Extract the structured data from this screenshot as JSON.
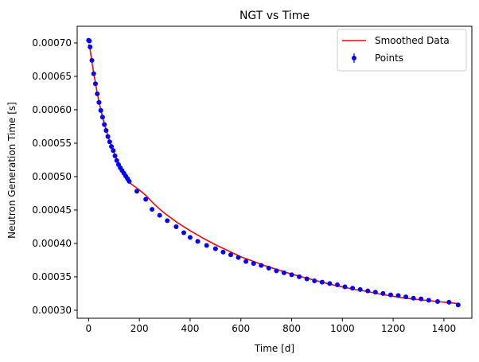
{
  "chart_data": {
    "type": "scatter",
    "title": "NGT vs Time",
    "xlabel": "Time [d]",
    "ylabel": "Neutron Generation Time [s]",
    "xlim": [
      -45,
      1510
    ],
    "ylim": [
      0.000288,
      0.000725
    ],
    "xticks": [
      0,
      200,
      400,
      600,
      800,
      1000,
      1200,
      1400
    ],
    "xtick_labels": [
      "0",
      "200",
      "400",
      "600",
      "800",
      "1000",
      "1200",
      "1400"
    ],
    "yticks": [
      0.0003,
      0.00035,
      0.0004,
      0.00045,
      0.0005,
      0.00055,
      0.0006,
      0.00065,
      0.0007
    ],
    "ytick_labels": [
      "0.00030",
      "0.00035",
      "0.00040",
      "0.00045",
      "0.00050",
      "0.00055",
      "0.00060",
      "0.00065",
      "0.00070"
    ],
    "grid": false,
    "legend_position": "top-right",
    "series": [
      {
        "name": "Smoothed Data",
        "kind": "line",
        "color": "#ff0000",
        "x": [
          0,
          6,
          13,
          20,
          27,
          34,
          41,
          48,
          55,
          62,
          69,
          76,
          83,
          90,
          97,
          104,
          111,
          118,
          125,
          132,
          139,
          146,
          153,
          160,
          175,
          200,
          225,
          250,
          275,
          300,
          325,
          350,
          375,
          400,
          450,
          500,
          550,
          600,
          650,
          700,
          750,
          800,
          850,
          900,
          950,
          1000,
          1050,
          1100,
          1150,
          1200,
          1250,
          1300,
          1350,
          1400,
          1456
        ],
        "y": [
          0.000698,
          0.00069,
          0.000672,
          0.000655,
          0.00064,
          0.000625,
          0.000612,
          0.0006,
          0.000589,
          0.000579,
          0.00057,
          0.000561,
          0.000553,
          0.000546,
          0.000539,
          0.000532,
          0.000526,
          0.00052,
          0.000514,
          0.000509,
          0.000504,
          0.000499,
          0.000495,
          0.000491,
          0.000487,
          0.00048,
          0.000472,
          0.000462,
          0.000453,
          0.000445,
          0.000438,
          0.000431,
          0.000425,
          0.000419,
          0.000408,
          0.000398,
          0.000389,
          0.00038,
          0.000373,
          0.000366,
          0.00036,
          0.000354,
          0.000349,
          0.000344,
          0.000339,
          0.000335,
          0.000331,
          0.000328,
          0.000324,
          0.000321,
          0.000318,
          0.000316,
          0.000314,
          0.000312,
          0.00031
        ]
      },
      {
        "name": "Points",
        "kind": "points_errorbar",
        "color": "#0000ff",
        "x": [
          0,
          3,
          6,
          13,
          20,
          27,
          34,
          41,
          48,
          55,
          62,
          69,
          76,
          83,
          90,
          97,
          104,
          111,
          118,
          125,
          132,
          139,
          146,
          153,
          160,
          190,
          225,
          250,
          280,
          310,
          345,
          375,
          400,
          430,
          465,
          500,
          530,
          560,
          590,
          620,
          650,
          680,
          710,
          740,
          770,
          800,
          830,
          860,
          890,
          920,
          950,
          980,
          1010,
          1040,
          1070,
          1100,
          1130,
          1160,
          1190,
          1220,
          1250,
          1280,
          1310,
          1340,
          1375,
          1420,
          1456
        ],
        "y": [
          0.000704,
          0.000703,
          0.000694,
          0.000674,
          0.000654,
          0.000639,
          0.000624,
          0.000611,
          0.000599,
          0.000589,
          0.000578,
          0.000569,
          0.00056,
          0.000552,
          0.000545,
          0.000539,
          0.000531,
          0.000524,
          0.000518,
          0.000513,
          0.000509,
          0.000505,
          0.000501,
          0.000497,
          0.000493,
          0.000478,
          0.000466,
          0.000451,
          0.000442,
          0.000434,
          0.000425,
          0.000416,
          0.000409,
          0.000403,
          0.000397,
          0.000392,
          0.000387,
          0.000383,
          0.000379,
          0.000373,
          0.00037,
          0.000367,
          0.000363,
          0.000359,
          0.000356,
          0.000353,
          0.00035,
          0.000347,
          0.000344,
          0.000342,
          0.00034,
          0.000338,
          0.000335,
          0.000333,
          0.000331,
          0.000329,
          0.000327,
          0.000325,
          0.000323,
          0.000322,
          0.00032,
          0.000318,
          0.000317,
          0.000315,
          0.000313,
          0.000312,
          0.000308
        ]
      }
    ]
  }
}
